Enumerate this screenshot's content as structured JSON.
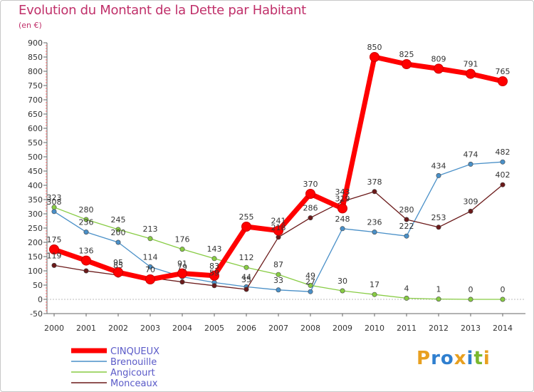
{
  "title": "Evolution du Montant de la Dette par Habitant",
  "unit_label": "(en €)",
  "brand": {
    "letters": [
      "P",
      "r",
      "o",
      "x",
      "i",
      "t",
      "i"
    ],
    "colors": [
      "#e8a020",
      "#2f7fcf",
      "#2f7fcf",
      "#e8a020",
      "#2f7fcf",
      "#7ab82e",
      "#e8a020"
    ]
  },
  "chart_data": {
    "type": "line",
    "title": "Evolution du Montant de la Dette par Habitant",
    "ylabel": "(en €)",
    "x": [
      "2000",
      "2001",
      "2002",
      "2003",
      "2004",
      "2005",
      "2006",
      "2007",
      "2008",
      "2009",
      "2010",
      "2011",
      "2012",
      "2013",
      "2014"
    ],
    "ylim": [
      -50,
      900
    ],
    "yticks": [
      -50,
      0,
      50,
      100,
      150,
      200,
      250,
      300,
      350,
      400,
      450,
      500,
      550,
      600,
      650,
      700,
      750,
      800,
      850,
      900
    ],
    "grid": false,
    "legend_position": "bottom-left",
    "series": [
      {
        "name": "CINQUEUX",
        "color": "#ff0000",
        "values": [
          175,
          136,
          95,
          70,
          91,
          83,
          255,
          241,
          370,
          319,
          850,
          825,
          809,
          791,
          765
        ],
        "labels": [
          "175",
          "136",
          "95",
          "70",
          "91",
          "83",
          "255",
          "241",
          "370",
          "319",
          "850",
          "825",
          "809",
          "791",
          "765"
        ]
      },
      {
        "name": "Brenouille",
        "color": "#4a90c8",
        "values": [
          308,
          236,
          200,
          114,
          79,
          59,
          44,
          33,
          27,
          248,
          236,
          222,
          434,
          474,
          482
        ],
        "labels": [
          "308",
          "236",
          "200",
          "114",
          "79",
          "59",
          "44",
          "33",
          "27",
          "248",
          "236",
          "222",
          "434",
          "474",
          "482"
        ]
      },
      {
        "name": "Angicourt",
        "color": "#88cc44",
        "values": [
          323,
          280,
          245,
          213,
          176,
          143,
          112,
          87,
          49,
          30,
          17,
          4,
          1,
          0,
          0
        ],
        "labels": [
          "323",
          "280",
          "245",
          "213",
          "176",
          "143",
          "112",
          "87",
          "49",
          "30",
          "17",
          "4",
          "1",
          "0",
          "0"
        ]
      },
      {
        "name": "Monceaux",
        "color": "#6b1a1a",
        "values": [
          119,
          100,
          85,
          76,
          61,
          48,
          35,
          218,
          286,
          343,
          378,
          280,
          253,
          309,
          402
        ],
        "labels": [
          "119",
          "",
          "85",
          "",
          "",
          "",
          "35",
          "218",
          "286",
          "343",
          "378",
          "280",
          "253",
          "309",
          "402"
        ]
      }
    ]
  }
}
